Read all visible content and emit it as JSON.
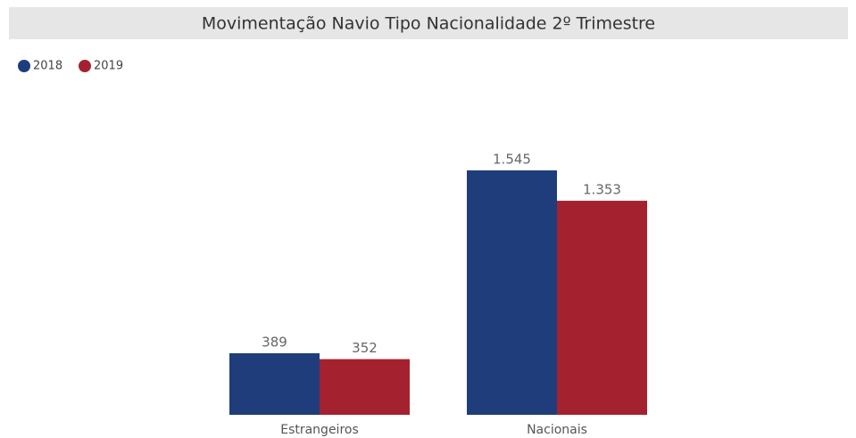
{
  "chart_data": {
    "type": "bar",
    "title": "Movimentação Navio Tipo Nacionalidade 2º Trimestre",
    "categories": [
      "Estrangeiros",
      "Nacionais"
    ],
    "series": [
      {
        "name": "2018",
        "color": "#1f3d7a",
        "values": [
          389,
          1545
        ],
        "value_labels": [
          "389",
          "1.545"
        ]
      },
      {
        "name": "2019",
        "color": "#a4222f",
        "values": [
          352,
          1353
        ],
        "value_labels": [
          "352",
          "1.353"
        ]
      }
    ]
  }
}
